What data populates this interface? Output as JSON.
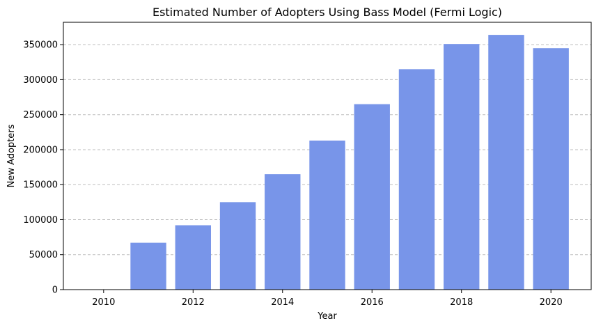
{
  "chart_data": {
    "type": "bar",
    "title": "Estimated Number of Adopters Using Bass Model (Fermi Logic)",
    "xlabel": "Year",
    "ylabel": "New Adopters",
    "categories": [
      2011,
      2012,
      2013,
      2014,
      2015,
      2016,
      2017,
      2018,
      2019,
      2020
    ],
    "values": [
      67000,
      92000,
      125000,
      165000,
      213000,
      265000,
      315000,
      351000,
      364000,
      345000
    ],
    "xlim": [
      2009.1,
      2020.9
    ],
    "ylim": [
      0,
      382000
    ],
    "x_ticks": [
      2010,
      2012,
      2014,
      2016,
      2018,
      2020
    ],
    "y_ticks": [
      0,
      50000,
      100000,
      150000,
      200000,
      250000,
      300000,
      350000
    ],
    "bar_color": "#7895e9",
    "grid": "y-dashed",
    "legend": "none"
  }
}
